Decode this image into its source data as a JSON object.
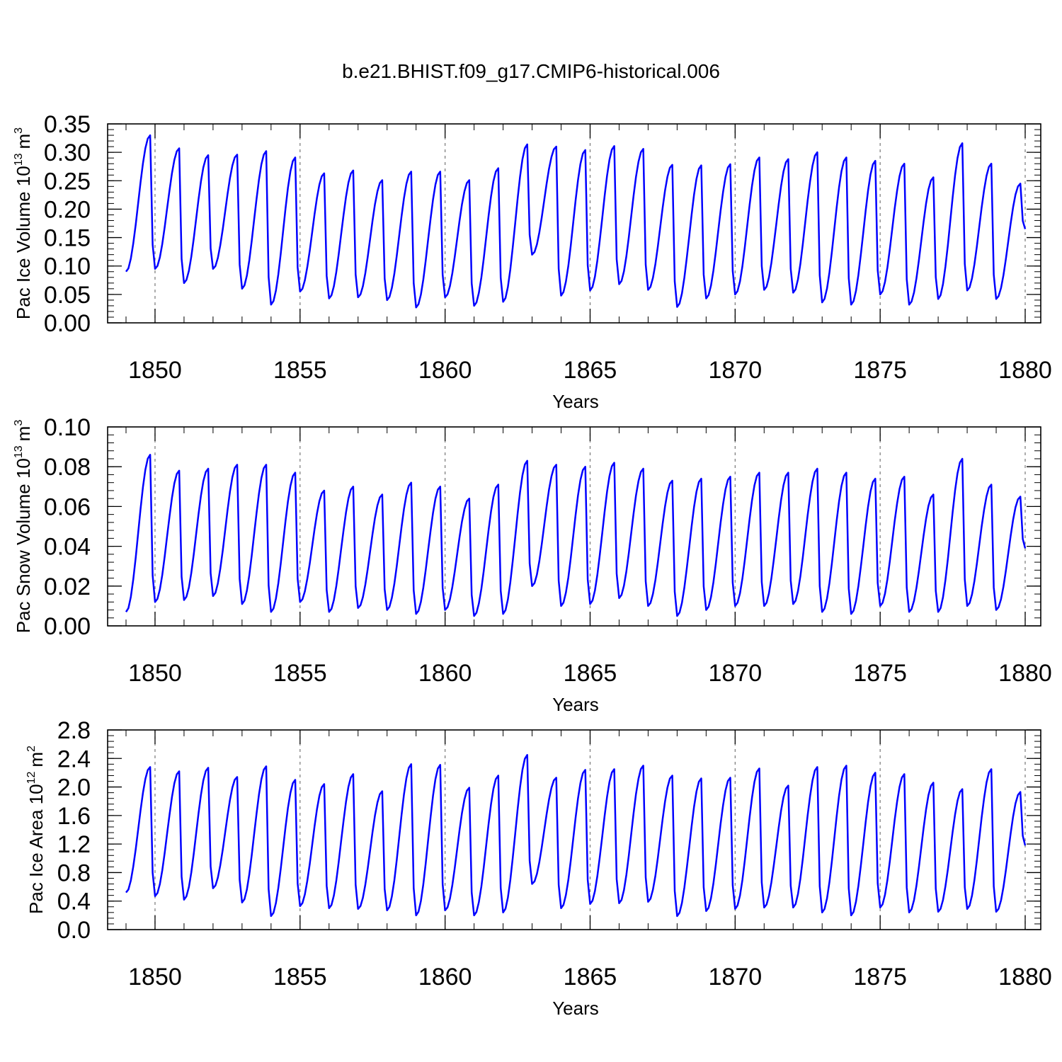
{
  "title": "b.e21.BHIST.f09_g17.CMIP6-historical.006",
  "colors": {
    "series": "#0000ff",
    "axes": "#000000",
    "grid": "#777777"
  },
  "chart_data": [
    {
      "type": "line",
      "ylabel_main": "Pac Ice Volume 10",
      "ylabel_exp": "13",
      "ylabel_unit": "m",
      "ylabel_unit_exp": "3",
      "xlabel": "Years",
      "xlim": [
        1849.0,
        1880.0
      ],
      "ylim": [
        0.0,
        0.35
      ],
      "xticks": [
        1850,
        1855,
        1860,
        1865,
        1870,
        1875,
        1880
      ],
      "yticks": [
        0.0,
        0.05,
        0.1,
        0.15,
        0.2,
        0.25,
        0.3,
        0.35
      ],
      "ytick_labels": [
        "0.00",
        "0.05",
        "0.10",
        "0.15",
        "0.20",
        "0.25",
        "0.30",
        "0.35"
      ],
      "vertical_grid": "dashed at major x ticks",
      "peaks": [
        0.33,
        0.307,
        0.295,
        0.296,
        0.302,
        0.291,
        0.263,
        0.268,
        0.251,
        0.266,
        0.266,
        0.251,
        0.272,
        0.314,
        0.31,
        0.304,
        0.311,
        0.306,
        0.278,
        0.277,
        0.279,
        0.291,
        0.288,
        0.3,
        0.291,
        0.285,
        0.28,
        0.256,
        0.316,
        0.28,
        0.245
      ],
      "troughs": [
        0.095,
        0.07,
        0.095,
        0.06,
        0.032,
        0.055,
        0.043,
        0.045,
        0.04,
        0.027,
        0.045,
        0.03,
        0.037,
        0.12,
        0.048,
        0.057,
        0.068,
        0.058,
        0.028,
        0.043,
        0.05,
        0.058,
        0.053,
        0.036,
        0.032,
        0.05,
        0.032,
        0.042,
        0.057,
        0.042,
        0.165
      ],
      "start_value": 0.09
    },
    {
      "type": "line",
      "ylabel_main": "Pac Snow Volume 10",
      "ylabel_exp": "13",
      "ylabel_unit": "m",
      "ylabel_unit_exp": "3",
      "xlabel": "Years",
      "xlim": [
        1849.0,
        1880.0
      ],
      "ylim": [
        0.0,
        0.1
      ],
      "xticks": [
        1850,
        1855,
        1860,
        1865,
        1870,
        1875,
        1880
      ],
      "yticks": [
        0.0,
        0.02,
        0.04,
        0.06,
        0.08,
        0.1
      ],
      "ytick_labels": [
        "0.00",
        "0.02",
        "0.04",
        "0.06",
        "0.08",
        "0.10"
      ],
      "vertical_grid": "dashed at major x ticks",
      "peaks": [
        0.086,
        0.078,
        0.079,
        0.081,
        0.081,
        0.077,
        0.068,
        0.07,
        0.066,
        0.072,
        0.07,
        0.064,
        0.071,
        0.083,
        0.081,
        0.08,
        0.082,
        0.079,
        0.073,
        0.074,
        0.075,
        0.077,
        0.077,
        0.079,
        0.077,
        0.074,
        0.075,
        0.066,
        0.084,
        0.071,
        0.065
      ],
      "troughs": [
        0.012,
        0.013,
        0.015,
        0.011,
        0.007,
        0.012,
        0.007,
        0.009,
        0.008,
        0.006,
        0.008,
        0.005,
        0.006,
        0.02,
        0.01,
        0.011,
        0.014,
        0.01,
        0.005,
        0.008,
        0.01,
        0.01,
        0.011,
        0.007,
        0.006,
        0.01,
        0.007,
        0.007,
        0.01,
        0.008,
        0.039
      ],
      "start_value": 0.007
    },
    {
      "type": "line",
      "ylabel_main": "Pac Ice Area 10",
      "ylabel_exp": "12",
      "ylabel_unit": "m",
      "ylabel_unit_exp": "2",
      "xlabel": "Years",
      "xlim": [
        1849.0,
        1880.0
      ],
      "ylim": [
        0.0,
        2.8
      ],
      "xticks": [
        1850,
        1855,
        1860,
        1865,
        1870,
        1875,
        1880
      ],
      "yticks": [
        0.0,
        0.4,
        0.8,
        1.2,
        1.6,
        2.0,
        2.4,
        2.8
      ],
      "ytick_labels": [
        "0.0",
        "0.4",
        "0.8",
        "1.2",
        "1.6",
        "2.0",
        "2.4",
        "2.8"
      ],
      "vertical_grid": "dashed at major x ticks",
      "peaks": [
        2.28,
        2.22,
        2.27,
        2.14,
        2.29,
        2.1,
        2.04,
        2.18,
        1.94,
        2.32,
        2.31,
        1.99,
        2.16,
        2.45,
        2.13,
        2.24,
        2.25,
        2.3,
        2.16,
        2.12,
        2.13,
        2.26,
        2.02,
        2.28,
        2.3,
        2.2,
        2.18,
        2.06,
        1.97,
        2.25,
        1.93
      ],
      "troughs": [
        0.47,
        0.42,
        0.58,
        0.38,
        0.19,
        0.33,
        0.3,
        0.29,
        0.27,
        0.2,
        0.27,
        0.2,
        0.24,
        0.64,
        0.3,
        0.36,
        0.37,
        0.39,
        0.19,
        0.26,
        0.29,
        0.31,
        0.31,
        0.24,
        0.2,
        0.31,
        0.24,
        0.25,
        0.29,
        0.25,
        1.18
      ],
      "start_value": 0.52
    }
  ]
}
